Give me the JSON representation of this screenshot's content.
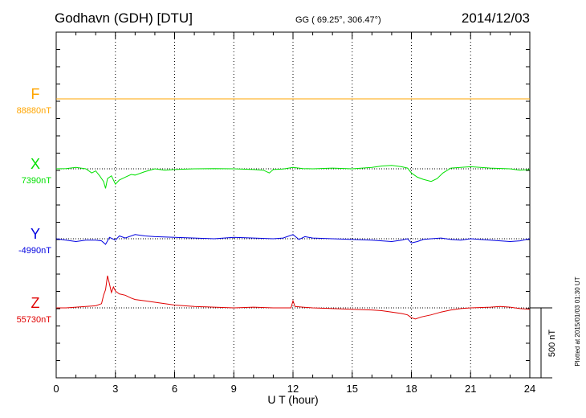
{
  "header": {
    "station": "Godhavn (GDH)  [DTU]",
    "coords": "GG ( 69.25°, 306.47°)",
    "date": "2014/12/03"
  },
  "chart_data": {
    "type": "line",
    "xlabel": "U T (hour)",
    "xlim": [
      0,
      24
    ],
    "x_ticks": [
      0,
      3,
      6,
      9,
      12,
      15,
      18,
      21,
      24
    ],
    "x_tick_labels": [
      "0",
      "3",
      "6",
      "9",
      "12",
      "15",
      "18",
      "21",
      "24"
    ],
    "grid": "dotted verticals at 3-hour intervals",
    "scale_bar": {
      "label": "500 nT",
      "value_nT": 500
    },
    "series": [
      {
        "name": "F",
        "baseline_label": "88880nT",
        "baseline_nT": 88880,
        "color": "#ffa500",
        "x": [
          0,
          24
        ],
        "y": [
          88880,
          88880
        ]
      },
      {
        "name": "X",
        "baseline_label": "7390nT",
        "baseline_nT": 7390,
        "color": "#00e000",
        "x": [
          0,
          0.5,
          1.0,
          1.5,
          1.8,
          2.0,
          2.2,
          2.4,
          2.5,
          2.6,
          2.8,
          3.0,
          3.2,
          3.5,
          3.8,
          4.0,
          4.5,
          5.0,
          5.5,
          6.0,
          7.0,
          8.0,
          9.0,
          10.0,
          10.5,
          10.8,
          11.0,
          11.5,
          12.0,
          12.5,
          13.0,
          14.0,
          15.0,
          16.0,
          16.5,
          17.0,
          17.5,
          17.8,
          18.0,
          18.3,
          18.6,
          19.0,
          19.3,
          19.6,
          20.0,
          20.5,
          21.0,
          22.0,
          23.0,
          23.5,
          24.0
        ],
        "y": [
          7390,
          7392,
          7400,
          7390,
          7360,
          7375,
          7340,
          7300,
          7250,
          7320,
          7340,
          7280,
          7310,
          7330,
          7350,
          7345,
          7370,
          7390,
          7380,
          7385,
          7390,
          7392,
          7390,
          7385,
          7380,
          7360,
          7385,
          7388,
          7400,
          7392,
          7390,
          7395,
          7390,
          7400,
          7410,
          7415,
          7405,
          7395,
          7360,
          7330,
          7315,
          7300,
          7320,
          7360,
          7395,
          7400,
          7405,
          7395,
          7390,
          7380,
          7385
        ]
      },
      {
        "name": "Y",
        "baseline_label": "-4990nT",
        "baseline_nT": -4990,
        "color": "#0000e0",
        "x": [
          0,
          0.5,
          1.0,
          1.5,
          2.0,
          2.3,
          2.5,
          2.7,
          3.0,
          3.2,
          3.5,
          4.0,
          4.5,
          5.0,
          6.0,
          7.0,
          8.0,
          9.0,
          10.0,
          11.0,
          11.5,
          12.0,
          12.3,
          12.6,
          13.0,
          14.0,
          15.0,
          16.0,
          16.5,
          17.0,
          17.5,
          17.8,
          18.0,
          18.3,
          18.6,
          19.0,
          19.5,
          20.0,
          20.5,
          21.0,
          22.0,
          23.0,
          23.5,
          24.0
        ],
        "y": [
          -4990,
          -5000,
          -5010,
          -5000,
          -5000,
          -5005,
          -5030,
          -4980,
          -5000,
          -4970,
          -4985,
          -4960,
          -4970,
          -4975,
          -4980,
          -4985,
          -4990,
          -4980,
          -4985,
          -4990,
          -4985,
          -4960,
          -4995,
          -4975,
          -4985,
          -4990,
          -4995,
          -5000,
          -5005,
          -5010,
          -5000,
          -4990,
          -5020,
          -5010,
          -4995,
          -4990,
          -4985,
          -4995,
          -5000,
          -4990,
          -5000,
          -5010,
          -5005,
          -4990
        ]
      },
      {
        "name": "Z",
        "baseline_label": "55730nT",
        "baseline_nT": 55730,
        "color": "#e00000",
        "x": [
          0,
          0.5,
          1.0,
          1.5,
          2.0,
          2.3,
          2.4,
          2.5,
          2.6,
          2.7,
          2.8,
          2.9,
          3.0,
          3.2,
          3.5,
          3.8,
          4.0,
          4.5,
          5.0,
          5.5,
          6.0,
          7.0,
          8.0,
          9.0,
          10.0,
          11.0,
          11.9,
          12.0,
          12.1,
          12.5,
          13.0,
          14.0,
          15.0,
          16.0,
          16.5,
          17.0,
          17.5,
          17.8,
          18.0,
          18.2,
          18.5,
          19.0,
          19.5,
          20.0,
          20.5,
          21.0,
          22.0,
          22.5,
          23.0,
          23.5,
          24.0
        ],
        "y": [
          55730,
          55730,
          55735,
          55740,
          55745,
          55760,
          55820,
          55860,
          55960,
          55900,
          55840,
          55880,
          55850,
          55830,
          55820,
          55800,
          55790,
          55780,
          55770,
          55760,
          55750,
          55740,
          55735,
          55730,
          55735,
          55730,
          55730,
          55780,
          55740,
          55735,
          55730,
          55725,
          55720,
          55715,
          55710,
          55700,
          55690,
          55680,
          55660,
          55650,
          55665,
          55680,
          55700,
          55715,
          55725,
          55730,
          55735,
          55740,
          55735,
          55725,
          55720
        ]
      }
    ]
  },
  "side_note": "Plotted at 2015/01/03 01:30 UT"
}
